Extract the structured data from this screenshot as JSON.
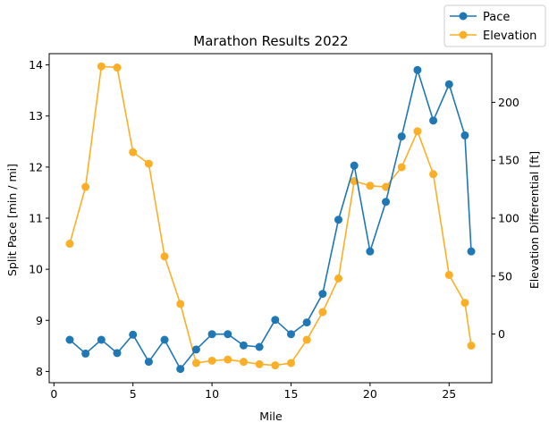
{
  "chart_data": {
    "type": "line",
    "title": "Marathon Results 2022",
    "xlabel": "Mile",
    "ylabel_left": "Split Pace [min / mi]",
    "ylabel_right": "Elevation Differential [ft]",
    "xlim": [
      -0.3,
      27.7
    ],
    "ylim_left": [
      7.78,
      14.22
    ],
    "ylim_right": [
      -42,
      242
    ],
    "x_ticks": [
      0,
      5,
      10,
      15,
      20,
      25
    ],
    "y_ticks_left": [
      8,
      9,
      10,
      11,
      12,
      13,
      14
    ],
    "y_ticks_right": [
      0,
      50,
      100,
      150,
      200
    ],
    "grid": false,
    "legend_position": "outside top-right",
    "x": [
      1,
      2,
      3,
      4,
      5,
      6,
      7,
      8,
      9,
      10,
      11,
      12,
      13,
      14,
      15,
      16,
      17,
      18,
      19,
      20,
      21,
      22,
      23,
      24,
      25,
      26,
      26.4
    ],
    "series": [
      {
        "name": "Pace",
        "axis": "left",
        "color": "#1f77b4",
        "values": [
          8.62,
          8.35,
          8.62,
          8.36,
          8.72,
          8.19,
          8.62,
          8.05,
          8.43,
          8.73,
          8.73,
          8.51,
          8.48,
          9.01,
          8.73,
          8.96,
          9.52,
          10.97,
          12.03,
          10.35,
          11.32,
          12.6,
          13.9,
          12.91,
          13.62,
          12.62,
          10.35
        ]
      },
      {
        "name": "Elevation",
        "axis": "right",
        "color": "#fbaf27",
        "values": [
          78,
          127,
          231,
          230,
          157,
          147,
          67,
          26,
          -25,
          -23,
          -22,
          -24,
          -26,
          -27,
          -25,
          -5,
          19,
          48,
          132,
          128,
          127,
          144,
          175,
          138,
          51,
          27,
          -10
        ]
      }
    ]
  }
}
